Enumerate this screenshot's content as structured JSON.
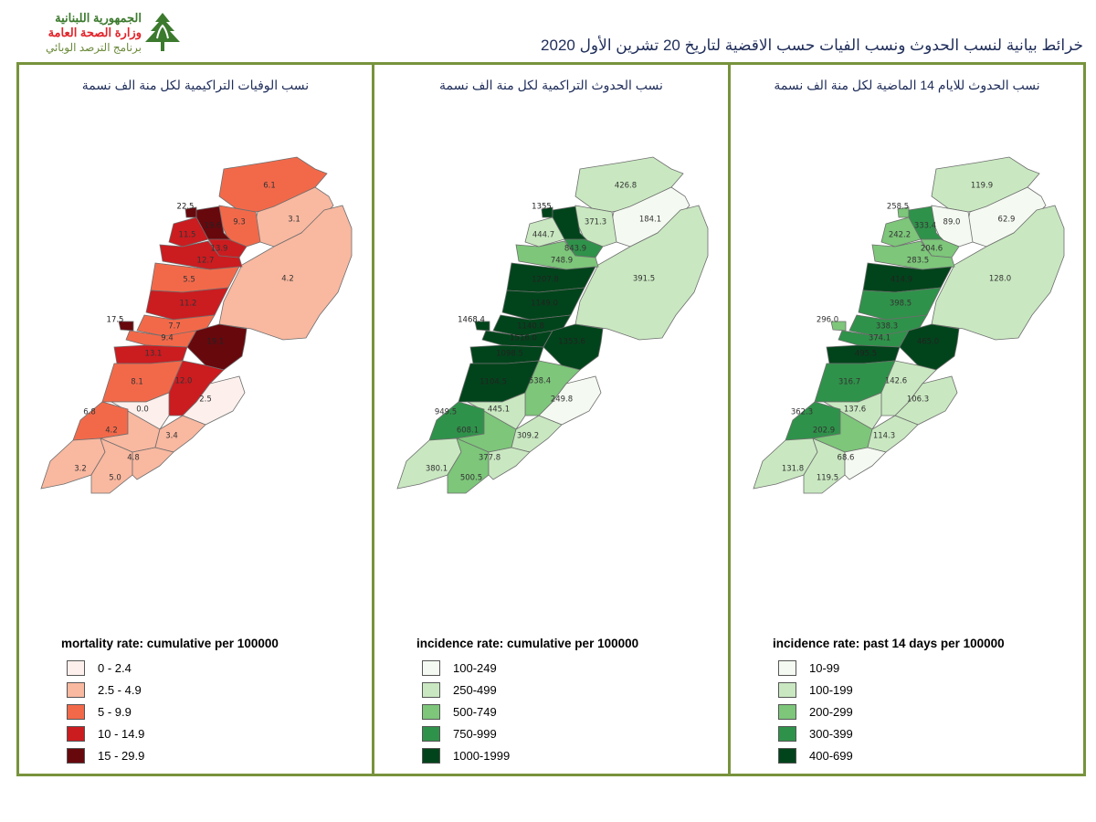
{
  "header": {
    "logo_lines": [
      "الجمهورية اللبنانية",
      "وزارة الصحة العامة",
      "برنامج الترصد الوبائي"
    ],
    "title": "خرائط بيانية لنسب الحدوث ونسب الفيات حسب الاقضية لتاريخ  20 تشرين الأول 2020"
  },
  "colors": {
    "border": "#77933c",
    "reds": [
      "#fdf0ec",
      "#f9b8a0",
      "#f2694a",
      "#cb1c20",
      "#67080d"
    ],
    "greens": [
      "#f4faf1",
      "#c9e8c1",
      "#7dc67a",
      "#2f924a",
      "#01441b"
    ]
  },
  "panels": [
    {
      "title": "نسب الوفيات التراكيمية لكل منة الف نسمة",
      "legend_title": "mortality rate: cumulative per 100000",
      "legend": [
        "0 - 2.4",
        "2.5 - 4.9",
        "5 - 9.9",
        "10 - 14.9",
        "15 - 29.9"
      ],
      "palette": "reds"
    },
    {
      "title": "نسب الحدوث التراكمية لكل منة الف نسمة",
      "legend_title": "incidence rate: cumulative per 100000",
      "legend": [
        "100-249",
        "250-499",
        "500-749",
        "750-999",
        "1000-1999"
      ],
      "palette": "greens"
    },
    {
      "title": "نسب الحدوث للايام 14 الماضية لكل منة الف نسمة",
      "legend_title": "incidence rate: past 14 days per 100000",
      "legend": [
        "10-99",
        "100-199",
        "200-299",
        "300-399",
        "400-699"
      ],
      "palette": "greens"
    }
  ],
  "chart_data": [
    {
      "type": "choropleth",
      "labels": [
        "6.1",
        "3.1",
        "4.2",
        "9.3",
        "22.5",
        "19.6",
        "11.5",
        "13.9",
        "12.7",
        "5.5",
        "11.2",
        "7.7",
        "17.5",
        "9.4",
        "19.1",
        "13.1",
        "8.1",
        "12.0",
        "2.5",
        "0.0",
        "6.8",
        "4.2",
        "3.4",
        "3.2",
        "5.0",
        "4.8"
      ],
      "classes": [
        2,
        1,
        1,
        2,
        4,
        4,
        3,
        3,
        3,
        2,
        3,
        2,
        4,
        2,
        4,
        3,
        2,
        3,
        0,
        0,
        2,
        1,
        1,
        1,
        1,
        1
      ]
    },
    {
      "type": "choropleth",
      "labels": [
        "426.8",
        "184.1",
        "391.5",
        "371.3",
        "1355",
        "",
        "444.7",
        "843.9",
        "748.9",
        "1207.8",
        "1149.0",
        "1140.8",
        "1468.4",
        "1516.0",
        "1353.6",
        "1098.5",
        "1104.5",
        "538.4",
        "249.8",
        "445.1",
        "949.5",
        "608.1",
        "309.2",
        "380.1",
        "500.5",
        "377.8"
      ],
      "classes": [
        1,
        0,
        1,
        1,
        4,
        4,
        1,
        3,
        2,
        4,
        4,
        4,
        4,
        4,
        4,
        4,
        4,
        2,
        0,
        1,
        3,
        2,
        1,
        1,
        2,
        1
      ]
    },
    {
      "type": "choropleth",
      "labels": [
        "119.9",
        "62.9",
        "128.0",
        "89.0",
        "258.5",
        "333.4",
        "242.2",
        "204.6",
        "283.5",
        "414.9",
        "398.5",
        "338.3",
        "296.0",
        "374.1",
        "465.0",
        "495.5",
        "316.7",
        "142.6",
        "106.3",
        "137.6",
        "362.3",
        "202.9",
        "114.3",
        "131.8",
        "119.5",
        "68.6"
      ],
      "classes": [
        1,
        0,
        1,
        0,
        2,
        3,
        2,
        2,
        2,
        4,
        3,
        3,
        2,
        3,
        4,
        4,
        3,
        1,
        1,
        1,
        3,
        2,
        1,
        1,
        1,
        0
      ]
    }
  ]
}
